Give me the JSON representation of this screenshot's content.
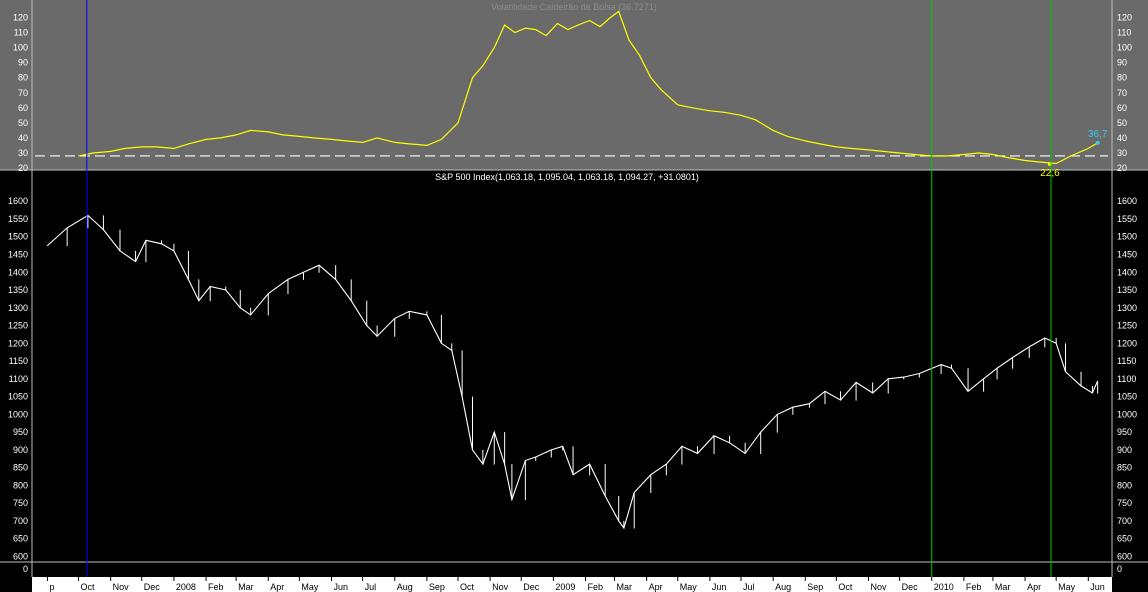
{
  "chart_data": [
    {
      "type": "line",
      "title": "Volatilidade Caldeirão de Bolsa (36.7271)",
      "y_ticks": [
        20,
        30,
        40,
        50,
        60,
        70,
        80,
        90,
        100,
        110,
        120
      ],
      "ylim": [
        20,
        125
      ],
      "reference_value": 28,
      "series": [
        {
          "color": "#ffff00",
          "points": [
            [
              "2007-10-01",
              28
            ],
            [
              "2007-10-15",
              30
            ],
            [
              "2007-11-01",
              31
            ],
            [
              "2007-11-15",
              33
            ],
            [
              "2007-12-01",
              34
            ],
            [
              "2007-12-15",
              34
            ],
            [
              "2008-01-01",
              33
            ],
            [
              "2008-01-15",
              36
            ],
            [
              "2008-02-01",
              39
            ],
            [
              "2008-02-15",
              40
            ],
            [
              "2008-03-01",
              42
            ],
            [
              "2008-03-15",
              45
            ],
            [
              "2008-04-01",
              44
            ],
            [
              "2008-04-15",
              42
            ],
            [
              "2008-05-01",
              41
            ],
            [
              "2008-05-15",
              40
            ],
            [
              "2008-06-01",
              39
            ],
            [
              "2008-06-15",
              38
            ],
            [
              "2008-07-01",
              37
            ],
            [
              "2008-07-15",
              40
            ],
            [
              "2008-08-01",
              37
            ],
            [
              "2008-08-15",
              36
            ],
            [
              "2008-09-01",
              35
            ],
            [
              "2008-09-15",
              39
            ],
            [
              "2008-10-01",
              50
            ],
            [
              "2008-10-15",
              80
            ],
            [
              "2008-10-25",
              88
            ],
            [
              "2008-11-05",
              100
            ],
            [
              "2008-11-15",
              115
            ],
            [
              "2008-11-25",
              110
            ],
            [
              "2008-12-05",
              113
            ],
            [
              "2008-12-15",
              112
            ],
            [
              "2008-12-25",
              108
            ],
            [
              "2009-01-05",
              116
            ],
            [
              "2009-01-15",
              112
            ],
            [
              "2009-01-25",
              115
            ],
            [
              "2009-02-05",
              118
            ],
            [
              "2009-02-15",
              114
            ],
            [
              "2009-02-25",
              120
            ],
            [
              "2009-03-05",
              124
            ],
            [
              "2009-03-15",
              105
            ],
            [
              "2009-03-25",
              95
            ],
            [
              "2009-04-05",
              80
            ],
            [
              "2009-04-15",
              72
            ],
            [
              "2009-05-01",
              62
            ],
            [
              "2009-05-15",
              60
            ],
            [
              "2009-06-01",
              58
            ],
            [
              "2009-06-15",
              57
            ],
            [
              "2009-07-01",
              55
            ],
            [
              "2009-07-15",
              52
            ],
            [
              "2009-08-01",
              45
            ],
            [
              "2009-08-15",
              41
            ],
            [
              "2009-09-01",
              38
            ],
            [
              "2009-09-15",
              36
            ],
            [
              "2009-10-01",
              34
            ],
            [
              "2009-10-15",
              33
            ],
            [
              "2009-11-01",
              32
            ],
            [
              "2009-11-15",
              31
            ],
            [
              "2009-12-01",
              30
            ],
            [
              "2009-12-15",
              29
            ],
            [
              "2010-01-01",
              28
            ],
            [
              "2010-01-15",
              28
            ],
            [
              "2010-02-01",
              29
            ],
            [
              "2010-02-15",
              30
            ],
            [
              "2010-03-01",
              29
            ],
            [
              "2010-03-15",
              27
            ],
            [
              "2010-04-01",
              25
            ],
            [
              "2010-04-15",
              24
            ],
            [
              "2010-05-01",
              23
            ],
            [
              "2010-05-15",
              28
            ],
            [
              "2010-06-01",
              33
            ],
            [
              "2010-06-10",
              36.7
            ]
          ]
        }
      ],
      "annotations": [
        {
          "text": "36,7",
          "date": "2010-06-10",
          "value": 36.7,
          "color": "#39c8e6"
        },
        {
          "text": "22,6",
          "date": "2010-04-25",
          "value": 22.6,
          "color": "#ffff00"
        }
      ],
      "grid": false,
      "background": "#6a6a6a"
    },
    {
      "type": "bar",
      "title": "S&P 500 Index(1,063.18, 1,095.04, 1,063.18, 1,094.27, +31.0801)",
      "y_ticks": [
        600,
        650,
        700,
        750,
        800,
        850,
        900,
        950,
        1000,
        1050,
        1100,
        1150,
        1200,
        1250,
        1300,
        1350,
        1400,
        1450,
        1500,
        1550,
        1600
      ],
      "ylim": [
        590,
        1640
      ],
      "series": [
        {
          "color": "#ffffff",
          "points": [
            [
              "2007-09-01",
              1475
            ],
            [
              "2007-09-20",
              1525
            ],
            [
              "2007-10-10",
              1560
            ],
            [
              "2007-10-25",
              1520
            ],
            [
              "2007-11-10",
              1460
            ],
            [
              "2007-11-25",
              1430
            ],
            [
              "2007-12-05",
              1490
            ],
            [
              "2007-12-20",
              1480
            ],
            [
              "2008-01-01",
              1460
            ],
            [
              "2008-01-15",
              1380
            ],
            [
              "2008-01-25",
              1320
            ],
            [
              "2008-02-05",
              1360
            ],
            [
              "2008-02-20",
              1350
            ],
            [
              "2008-03-05",
              1300
            ],
            [
              "2008-03-15",
              1280
            ],
            [
              "2008-04-01",
              1340
            ],
            [
              "2008-04-20",
              1380
            ],
            [
              "2008-05-05",
              1400
            ],
            [
              "2008-05-20",
              1420
            ],
            [
              "2008-06-05",
              1380
            ],
            [
              "2008-06-20",
              1320
            ],
            [
              "2008-07-05",
              1250
            ],
            [
              "2008-07-15",
              1220
            ],
            [
              "2008-08-01",
              1270
            ],
            [
              "2008-08-15",
              1290
            ],
            [
              "2008-09-01",
              1280
            ],
            [
              "2008-09-15",
              1200
            ],
            [
              "2008-09-25",
              1180
            ],
            [
              "2008-10-05",
              1050
            ],
            [
              "2008-10-15",
              900
            ],
            [
              "2008-10-25",
              860
            ],
            [
              "2008-11-05",
              950
            ],
            [
              "2008-11-15",
              860
            ],
            [
              "2008-11-22",
              760
            ],
            [
              "2008-12-05",
              870
            ],
            [
              "2008-12-15",
              880
            ],
            [
              "2008-12-30",
              900
            ],
            [
              "2009-01-10",
              910
            ],
            [
              "2009-01-20",
              830
            ],
            [
              "2009-02-05",
              860
            ],
            [
              "2009-02-20",
              770
            ],
            [
              "2009-03-05",
              700
            ],
            [
              "2009-03-10",
              680
            ],
            [
              "2009-03-20",
              780
            ],
            [
              "2009-04-05",
              830
            ],
            [
              "2009-04-20",
              860
            ],
            [
              "2009-05-05",
              910
            ],
            [
              "2009-05-20",
              890
            ],
            [
              "2009-06-05",
              940
            ],
            [
              "2009-06-20",
              920
            ],
            [
              "2009-07-05",
              890
            ],
            [
              "2009-07-20",
              950
            ],
            [
              "2009-08-05",
              1000
            ],
            [
              "2009-08-20",
              1020
            ],
            [
              "2009-09-05",
              1030
            ],
            [
              "2009-09-20",
              1065
            ],
            [
              "2009-10-05",
              1040
            ],
            [
              "2009-10-20",
              1090
            ],
            [
              "2009-11-05",
              1060
            ],
            [
              "2009-11-20",
              1100
            ],
            [
              "2009-12-05",
              1105
            ],
            [
              "2009-12-20",
              1115
            ],
            [
              "2010-01-10",
              1140
            ],
            [
              "2010-01-20",
              1130
            ],
            [
              "2010-02-05",
              1065
            ],
            [
              "2010-02-20",
              1100
            ],
            [
              "2010-03-05",
              1130
            ],
            [
              "2010-03-20",
              1160
            ],
            [
              "2010-04-05",
              1190
            ],
            [
              "2010-04-20",
              1215
            ],
            [
              "2010-05-01",
              1200
            ],
            [
              "2010-05-10",
              1120
            ],
            [
              "2010-05-25",
              1080
            ],
            [
              "2010-06-05",
              1060
            ],
            [
              "2010-06-10",
              1094
            ]
          ]
        }
      ],
      "grid": false,
      "background": "#000000"
    },
    {
      "type": "bar",
      "y_ticks": [
        0
      ],
      "x_tick_labels": [
        {
          "date": "2007-09-01",
          "label": "p"
        },
        {
          "date": "2007-10-01",
          "label": "Oct"
        },
        {
          "date": "2007-11-01",
          "label": "Nov"
        },
        {
          "date": "2007-12-01",
          "label": "Dec"
        },
        {
          "date": "2008-01-01",
          "label": "2008"
        },
        {
          "date": "2008-02-01",
          "label": "Feb"
        },
        {
          "date": "2008-03-01",
          "label": "Mar"
        },
        {
          "date": "2008-04-01",
          "label": "Apr"
        },
        {
          "date": "2008-05-01",
          "label": "May"
        },
        {
          "date": "2008-06-01",
          "label": "Jun"
        },
        {
          "date": "2008-07-01",
          "label": "Jul"
        },
        {
          "date": "2008-08-01",
          "label": "Aug"
        },
        {
          "date": "2008-09-01",
          "label": "Sep"
        },
        {
          "date": "2008-10-01",
          "label": "Oct"
        },
        {
          "date": "2008-11-01",
          "label": "Nov"
        },
        {
          "date": "2008-12-01",
          "label": "Dec"
        },
        {
          "date": "2009-01-01",
          "label": "2009"
        },
        {
          "date": "2009-02-01",
          "label": "Feb"
        },
        {
          "date": "2009-03-01",
          "label": "Mar"
        },
        {
          "date": "2009-04-01",
          "label": "Apr"
        },
        {
          "date": "2009-05-01",
          "label": "May"
        },
        {
          "date": "2009-06-01",
          "label": "Jun"
        },
        {
          "date": "2009-07-01",
          "label": "Jul"
        },
        {
          "date": "2009-08-01",
          "label": "Aug"
        },
        {
          "date": "2009-09-01",
          "label": "Sep"
        },
        {
          "date": "2009-10-01",
          "label": "Oct"
        },
        {
          "date": "2009-11-01",
          "label": "Nov"
        },
        {
          "date": "2009-12-01",
          "label": "Dec"
        },
        {
          "date": "2010-01-01",
          "label": "2010"
        },
        {
          "date": "2010-02-01",
          "label": "Feb"
        },
        {
          "date": "2010-03-01",
          "label": "Mar"
        },
        {
          "date": "2010-04-01",
          "label": "Apr"
        },
        {
          "date": "2010-05-01",
          "label": "May"
        },
        {
          "date": "2010-06-01",
          "label": "Jun"
        }
      ],
      "xlim": [
        "2007-08-20",
        "2010-06-20"
      ],
      "markers": [
        {
          "date": "2007-10-09",
          "color": "#0000ff"
        },
        {
          "date": "2010-01-01",
          "color": "#00c800"
        },
        {
          "date": "2010-04-26",
          "color": "#00c800"
        }
      ]
    }
  ]
}
